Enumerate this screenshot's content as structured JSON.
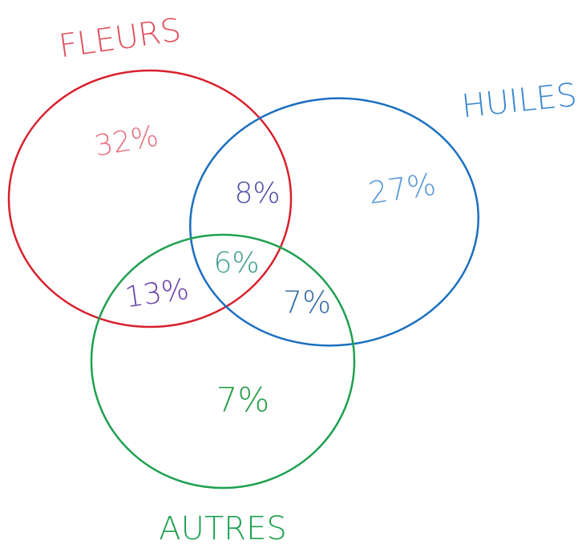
{
  "sets": [
    {
      "label": "FLEURS"
    },
    {
      "label": "HUILES"
    },
    {
      "label": "AUTRES"
    }
  ],
  "regions": [
    {
      "label": "32%"
    },
    {
      "label": "27%"
    },
    {
      "label": "7%"
    },
    {
      "label": "8%"
    },
    {
      "label": "13%"
    },
    {
      "label": "7%"
    },
    {
      "label": "6%"
    }
  ]
}
